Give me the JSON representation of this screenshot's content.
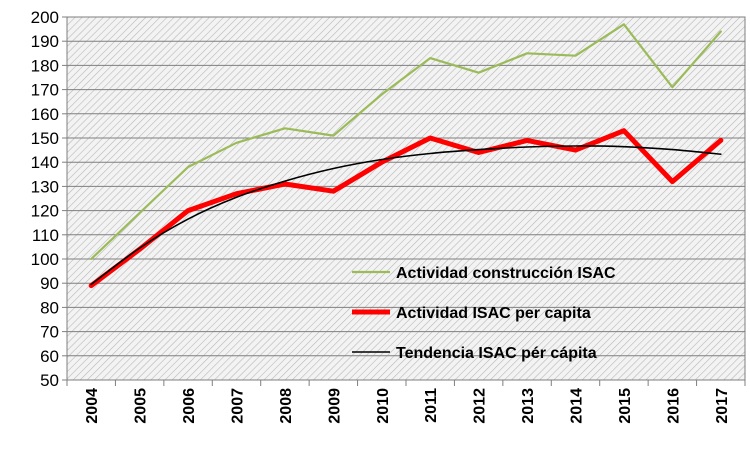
{
  "chart_data": {
    "type": "line",
    "title": "",
    "xlabel": "",
    "ylabel": "",
    "ylim": [
      50,
      200
    ],
    "ytick_step": 10,
    "grid": true,
    "legend_position": "bottom-center-inside",
    "categories": [
      "2004",
      "2005",
      "2006",
      "2007",
      "2008",
      "2009",
      "2010",
      "2011",
      "2012",
      "2013",
      "2014",
      "2015",
      "2016",
      "2017"
    ],
    "series": [
      {
        "name": "Actividad construcción ISAC",
        "color": "#9bbb59",
        "values": [
          100,
          119,
          138,
          148,
          154,
          151,
          168,
          183,
          177,
          185,
          184,
          197,
          171,
          194
        ]
      },
      {
        "name": "Actividad ISAC per capita",
        "color": "#ff0000",
        "values": [
          89,
          104,
          120,
          127,
          131,
          128,
          140,
          150,
          144,
          149,
          145,
          153,
          132,
          149
        ]
      },
      {
        "name": "Tendencia ISAC pér cápita",
        "color": "#000000",
        "values": [
          89.5,
          104.5,
          116.5,
          125.5,
          132.2,
          137.4,
          141.1,
          143.6,
          145.2,
          146.3,
          146.7,
          146.4,
          145.2,
          143.3
        ]
      }
    ]
  }
}
